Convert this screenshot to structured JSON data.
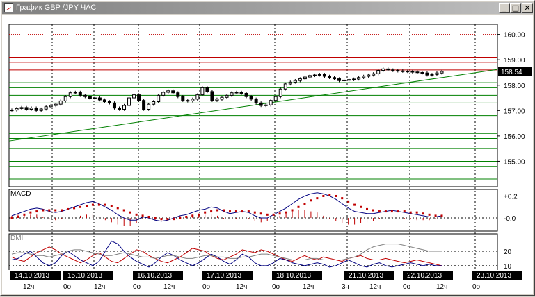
{
  "window": {
    "title": "График GBP /JPY  ЧАС",
    "min_symbol": "_",
    "max_symbol": "□",
    "close_symbol": "✕"
  },
  "colors": {
    "background": "#ffffff",
    "grid": "#000000",
    "candle": "#000000",
    "trend_line": "#008000",
    "horizontal_green": "#008000",
    "horizontal_red": "#c00000",
    "macd_line": "#000080",
    "macd_signal": "#c00000",
    "dmi_plus": "#c00000",
    "dmi_minus": "#000080",
    "adx": "#808080",
    "current_price_box": "#000000"
  },
  "chart_data": [
    {
      "type": "candlestick",
      "title": "",
      "ylim": [
        154.0,
        160.4
      ],
      "y_ticks": [
        "160.00",
        "159.00",
        "158.00",
        "157.00",
        "156.00",
        "155.00"
      ],
      "current_price": "158.54",
      "red_levels": [
        160.0,
        159.1,
        158.9,
        158.6
      ],
      "green_levels": [
        158.1,
        157.9,
        157.6,
        157.3,
        156.8,
        156.1,
        155.9,
        155.5,
        155.0,
        154.8,
        154.3
      ],
      "trend_line": {
        "from": [
          "14.10.2013 00",
          155.8
        ],
        "to": [
          "23.10.2013 00",
          158.6
        ]
      },
      "close": [
        157.02,
        157.08,
        157.12,
        157.05,
        157.1,
        157.0,
        157.06,
        157.15,
        157.2,
        157.25,
        157.38,
        157.55,
        157.7,
        157.72,
        157.6,
        157.55,
        157.48,
        157.5,
        157.42,
        157.35,
        157.3,
        157.1,
        157.05,
        157.2,
        157.5,
        157.62,
        157.4,
        157.05,
        157.25,
        157.35,
        157.6,
        157.72,
        157.78,
        157.7,
        157.55,
        157.4,
        157.38,
        157.45,
        157.62,
        157.9,
        157.75,
        157.4,
        157.45,
        157.52,
        157.6,
        157.7,
        157.72,
        157.68,
        157.55,
        157.45,
        157.3,
        157.2,
        157.22,
        157.4,
        157.55,
        157.85,
        158.05,
        158.12,
        158.18,
        158.25,
        158.32,
        158.38,
        158.4,
        158.42,
        158.35,
        158.3,
        158.25,
        158.18,
        158.2,
        158.22,
        158.24,
        158.3,
        158.35,
        158.4,
        158.45,
        158.58,
        158.64,
        158.6,
        158.58,
        158.56,
        158.55,
        158.54,
        158.52,
        158.5,
        158.48,
        158.4,
        158.42,
        158.48,
        158.54
      ]
    },
    {
      "type": "line",
      "title": "MACD",
      "y_ticks": [
        "+0.2",
        "-0.0"
      ],
      "ylim": [
        -0.12,
        0.26
      ],
      "series": [
        {
          "values": [
            0.02,
            0.04,
            0.06,
            0.08,
            0.09,
            0.08,
            0.06,
            0.05,
            0.06,
            0.08,
            0.1,
            0.12,
            0.14,
            0.15,
            0.13,
            0.1,
            0.07,
            0.03,
            0.0,
            -0.02,
            -0.02,
            0.01,
            0.0,
            -0.02,
            -0.03,
            -0.02,
            0.0,
            0.02,
            0.03,
            0.05,
            0.07,
            0.08,
            0.1,
            0.09,
            0.06,
            0.04,
            0.05,
            0.06,
            0.05,
            0.02,
            0.0,
            0.0,
            0.03,
            0.06,
            0.09,
            0.13,
            0.17,
            0.2,
            0.22,
            0.23,
            0.22,
            0.2,
            0.17,
            0.13,
            0.09,
            0.06,
            0.05,
            0.04,
            0.04,
            0.05,
            0.06,
            0.07,
            0.06,
            0.05,
            0.04,
            0.03,
            0.02,
            0.01,
            0.01,
            0.02
          ]
        },
        {
          "values": [
            0.0,
            0.01,
            0.03,
            0.05,
            0.06,
            0.07,
            0.07,
            0.07,
            0.07,
            0.08,
            0.09,
            0.1,
            0.11,
            0.12,
            0.12,
            0.12,
            0.11,
            0.09,
            0.07,
            0.05,
            0.03,
            0.02,
            0.01,
            0.0,
            -0.01,
            -0.01,
            -0.01,
            0.0,
            0.01,
            0.02,
            0.03,
            0.05,
            0.06,
            0.07,
            0.07,
            0.06,
            0.06,
            0.06,
            0.06,
            0.05,
            0.04,
            0.03,
            0.03,
            0.04,
            0.05,
            0.07,
            0.1,
            0.13,
            0.16,
            0.18,
            0.2,
            0.21,
            0.2,
            0.18,
            0.15,
            0.12,
            0.1,
            0.08,
            0.07,
            0.06,
            0.06,
            0.06,
            0.06,
            0.06,
            0.05,
            0.05,
            0.04,
            0.03,
            0.02,
            0.02
          ]
        }
      ],
      "histogram": [
        0.02,
        0.03,
        0.03,
        0.03,
        0.03,
        0.01,
        -0.01,
        -0.02,
        -0.01,
        0.0,
        0.01,
        0.02,
        0.03,
        0.03,
        0.01,
        -0.02,
        -0.04,
        -0.06,
        -0.07,
        -0.07,
        -0.05,
        -0.01,
        -0.01,
        -0.02,
        -0.02,
        -0.01,
        0.01,
        0.02,
        0.02,
        0.03,
        0.04,
        0.03,
        0.04,
        0.02,
        -0.01,
        -0.02,
        -0.01,
        0.0,
        -0.01,
        -0.03,
        -0.04,
        -0.03,
        0.0,
        0.02,
        0.04,
        0.06,
        0.07,
        0.07,
        0.06,
        0.05,
        0.02,
        -0.01,
        -0.03,
        -0.05,
        -0.06,
        -0.06,
        -0.05,
        -0.04,
        -0.03,
        -0.01,
        0.0,
        0.01,
        0.0,
        -0.01,
        -0.01,
        -0.02,
        -0.02,
        -0.02,
        -0.01,
        0.0
      ]
    },
    {
      "type": "line",
      "title": "DMI",
      "y_ticks": [
        "20",
        "10"
      ],
      "ylim": [
        8,
        32
      ],
      "series": [
        {
          "values": [
            16,
            14,
            13,
            16,
            19,
            21,
            23,
            21,
            18,
            16,
            14,
            12,
            14,
            17,
            19,
            16,
            13,
            12,
            15,
            18,
            21,
            20,
            17,
            15,
            13,
            12,
            14,
            16,
            19,
            22,
            21,
            20,
            17,
            15,
            14,
            16,
            18,
            21,
            20,
            19,
            21,
            20,
            18,
            16,
            14,
            13,
            15,
            17,
            15,
            14,
            16,
            15,
            14,
            13,
            15,
            16,
            17,
            15,
            14,
            14,
            15,
            14,
            13,
            12,
            13,
            14,
            13,
            12,
            11,
            10
          ]
        },
        {
          "values": [
            14,
            15,
            18,
            20,
            16,
            12,
            10,
            12,
            17,
            20,
            17,
            14,
            12,
            10,
            13,
            20,
            27,
            25,
            20,
            16,
            13,
            11,
            9,
            12,
            16,
            19,
            17,
            14,
            12,
            10,
            12,
            15,
            18,
            16,
            13,
            11,
            14,
            18,
            16,
            12,
            10,
            10,
            12,
            15,
            14,
            12,
            11,
            10,
            11,
            12,
            11,
            9,
            10,
            12,
            14,
            12,
            10,
            9,
            11,
            12,
            10,
            9,
            10,
            11,
            12,
            11,
            10,
            11,
            10,
            10
          ]
        },
        {
          "values": [
            18,
            19,
            19,
            18,
            17,
            17,
            16,
            17,
            18,
            20,
            21,
            21,
            20,
            19,
            18,
            17,
            17,
            18,
            19,
            18,
            17,
            16,
            16,
            15,
            16,
            17,
            17,
            16,
            15,
            15,
            16,
            17,
            17,
            16,
            16,
            15,
            15,
            16,
            16,
            17,
            18,
            18,
            17,
            16,
            15,
            14,
            14,
            14,
            15,
            15,
            14,
            14,
            14,
            14,
            15,
            16,
            18,
            21,
            23,
            24,
            25,
            25,
            25,
            24,
            23,
            22,
            21,
            20,
            20,
            20
          ]
        }
      ]
    }
  ],
  "time_axis": {
    "dates": [
      "14.10.2013",
      "15.10.2013",
      "16.10.2013",
      "17.10.2013",
      "18.10.2013",
      "21.10.2013",
      "22.10.2013",
      "23.10.2013"
    ],
    "hours": [
      "12ч",
      "0о",
      "12ч",
      "0о",
      "12ч",
      "0о",
      "12ч",
      "0о",
      "12ч",
      "3ч",
      "12ч",
      "0о",
      "12ч",
      "0о"
    ]
  }
}
